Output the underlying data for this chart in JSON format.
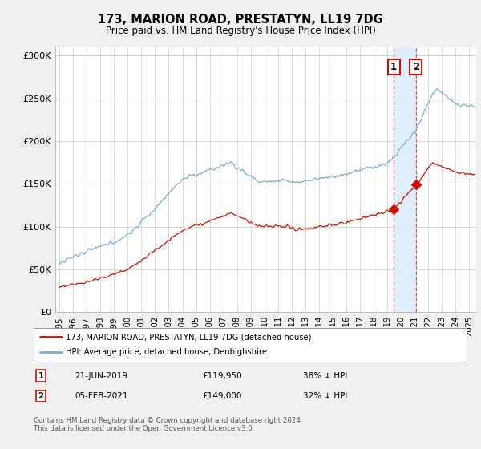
{
  "title": "173, MARION ROAD, PRESTATYN, LL19 7DG",
  "subtitle": "Price paid vs. HM Land Registry's House Price Index (HPI)",
  "ylim": [
    0,
    310000
  ],
  "yticks": [
    0,
    50000,
    100000,
    150000,
    200000,
    250000,
    300000
  ],
  "ytick_labels": [
    "£0",
    "£50K",
    "£100K",
    "£150K",
    "£200K",
    "£250K",
    "£300K"
  ],
  "xlim_start": 1994.7,
  "xlim_end": 2025.5,
  "transaction1_date": 2019.47,
  "transaction1_price": 119950,
  "transaction1_label": "21-JUN-2019",
  "transaction1_amount": "£119,950",
  "transaction1_pct": "38% ↓ HPI",
  "transaction2_date": 2021.09,
  "transaction2_price": 149000,
  "transaction2_label": "05-FEB-2021",
  "transaction2_amount": "£149,000",
  "transaction2_pct": "32% ↓ HPI",
  "hpi_color": "#7aadd4",
  "property_color": "#cc1100",
  "legend_property": "173, MARION ROAD, PRESTATYN, LL19 7DG (detached house)",
  "legend_hpi": "HPI: Average price, detached house, Denbighshire",
  "footer": "Contains HM Land Registry data © Crown copyright and database right 2024.\nThis data is licensed under the Open Government Licence v3.0.",
  "background_color": "#f0f0f0",
  "plot_bg_color": "#ffffff",
  "shade_color": "#ddeeff"
}
